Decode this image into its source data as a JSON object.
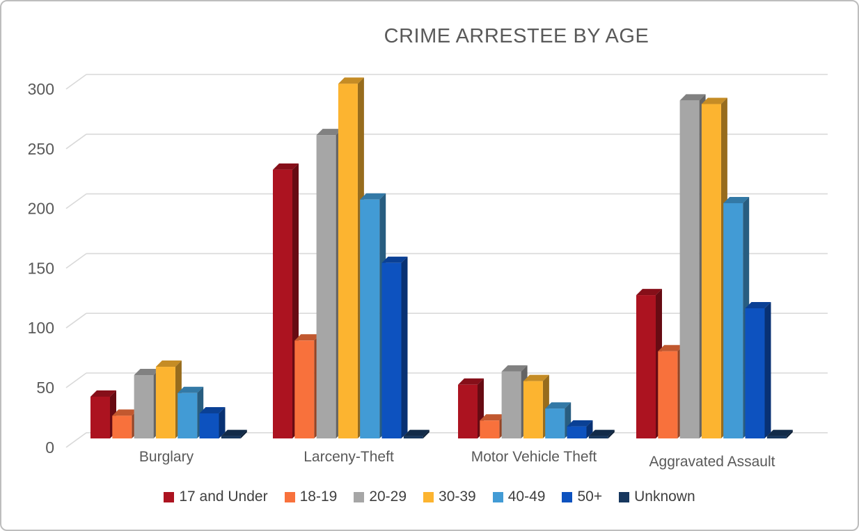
{
  "title": "CRIME ARRESTEE BY AGE",
  "chart_data": {
    "type": "bar",
    "subtype": "3d-clustered-column",
    "title": "CRIME ARRESTEE BY AGE",
    "categories": [
      "Burglary",
      "Larceny-Theft",
      "Motor Vehicle Theft",
      "Aggravated Assault"
    ],
    "series": [
      {
        "name": "17 and Under",
        "color": "#AC1320",
        "values": [
          35,
          225,
          45,
          120
        ]
      },
      {
        "name": "18-19",
        "color": "#F8713C",
        "values": [
          19,
          82,
          15,
          73
        ]
      },
      {
        "name": "20-29",
        "color": "#A6A6A6",
        "values": [
          53,
          254,
          56,
          283
        ]
      },
      {
        "name": "30-39",
        "color": "#FCB430",
        "values": [
          60,
          297,
          48,
          280
        ]
      },
      {
        "name": "40-49",
        "color": "#429BD5",
        "values": [
          38,
          200,
          25,
          197
        ]
      },
      {
        "name": "50+",
        "color": "#0D52BF",
        "values": [
          21,
          147,
          10,
          109
        ]
      },
      {
        "name": "Unknown",
        "color": "#17375E",
        "values": [
          2,
          2,
          2,
          2
        ]
      }
    ],
    "xlabel": "",
    "ylabel": "",
    "ylim": [
      0,
      300
    ],
    "yticks": [
      0,
      50,
      100,
      150,
      200,
      250,
      300
    ],
    "grid": true,
    "legend_position": "bottom"
  },
  "colors": {
    "grid": "#D9D9D9",
    "axis_text": "#595959",
    "title_text": "#595959",
    "legend_text": "#3F3F3F",
    "frame_border": "#BDBDBD",
    "background": "#FFFFFF"
  }
}
